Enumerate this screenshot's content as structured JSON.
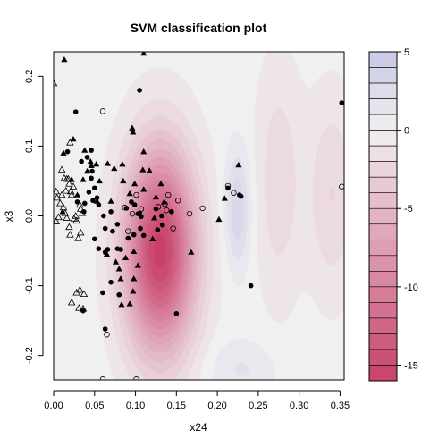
{
  "chart_data": {
    "type": "scatter",
    "title": "SVM classification plot",
    "xlabel": "x24",
    "ylabel": "x3",
    "xlim": [
      0.0,
      0.355
    ],
    "ylim": [
      -0.235,
      0.235
    ],
    "x_ticks": [
      "0.00",
      "0.05",
      "0.10",
      "0.15",
      "0.20",
      "0.25",
      "0.30",
      "0.35"
    ],
    "x_tick_values": [
      0.0,
      0.05,
      0.1,
      0.15,
      0.2,
      0.25,
      0.3,
      0.35
    ],
    "y_ticks": [
      "-0.2",
      "-0.1",
      "0.0",
      "0.1",
      "0.2"
    ],
    "y_tick_values": [
      -0.2,
      -0.1,
      0.0,
      0.1,
      0.2
    ],
    "colorbar": {
      "ticks": [
        "5",
        "0",
        "-5",
        "-10",
        "-15"
      ],
      "tick_values": [
        5,
        0,
        -5,
        -10,
        -15
      ],
      "range": [
        -16,
        5
      ],
      "colors": {
        "positive": "#c8c8e6",
        "zero": "#f0f0f0",
        "negative": "#c8406a"
      }
    },
    "decision_surface": {
      "components": [
        {
          "x": 0.13,
          "y": -0.05,
          "sx": 0.03,
          "sy": 0.1,
          "amp": -16.0
        },
        {
          "x": 0.225,
          "y": 0.01,
          "sx": 0.011,
          "sy": 0.06,
          "amp": 3.5
        },
        {
          "x": 0.275,
          "y": 0.05,
          "sx": 0.02,
          "sy": 0.12,
          "amp": -2.2
        },
        {
          "x": 0.34,
          "y": 0.03,
          "sx": 0.02,
          "sy": 0.1,
          "amp": -2.5
        },
        {
          "x": 0.23,
          "y": -0.22,
          "sx": 0.03,
          "sy": 0.03,
          "amp": 1.6
        }
      ]
    },
    "series": [
      {
        "marker": "filled-circle",
        "points": [
          [
            0.027,
            0.149
          ],
          [
            0.105,
            0.18
          ],
          [
            0.352,
            0.162
          ],
          [
            0.017,
            0.092
          ],
          [
            0.041,
            0.084
          ],
          [
            0.046,
            0.094
          ],
          [
            0.034,
            0.078
          ],
          [
            0.047,
            0.064
          ],
          [
            0.046,
            0.054
          ],
          [
            0.05,
            0.04
          ],
          [
            0.043,
            0.034
          ],
          [
            0.048,
            0.022
          ],
          [
            0.053,
            0.026
          ],
          [
            0.029,
            0.02
          ],
          [
            0.038,
            0.018
          ],
          [
            0.037,
            0.006
          ],
          [
            0.055,
            0.016
          ],
          [
            0.061,
            0.0
          ],
          [
            0.07,
            0.006
          ],
          [
            0.089,
            0.011
          ],
          [
            0.095,
            0.02
          ],
          [
            0.099,
            0.016
          ],
          [
            0.103,
            0.003
          ],
          [
            0.105,
            0.004
          ],
          [
            0.078,
            -0.012
          ],
          [
            0.072,
            -0.022
          ],
          [
            0.063,
            -0.018
          ],
          [
            0.05,
            -0.033
          ],
          [
            0.055,
            -0.047
          ],
          [
            0.063,
            -0.052
          ],
          [
            0.066,
            -0.048
          ],
          [
            0.078,
            -0.047
          ],
          [
            0.082,
            -0.048
          ],
          [
            0.091,
            -0.032
          ],
          [
            0.098,
            -0.027
          ],
          [
            0.11,
            -0.028
          ],
          [
            0.106,
            -0.018
          ],
          [
            0.127,
            -0.02
          ],
          [
            0.133,
            -0.013
          ],
          [
            0.125,
            0.01
          ],
          [
            0.132,
            0.0
          ],
          [
            0.144,
            0.006
          ],
          [
            0.07,
            -0.095
          ],
          [
            0.08,
            -0.113
          ],
          [
            0.06,
            -0.11
          ],
          [
            0.036,
            -0.136
          ],
          [
            0.063,
            -0.162
          ],
          [
            0.15,
            -0.14
          ],
          [
            0.213,
            0.04
          ],
          [
            0.227,
            0.03
          ],
          [
            0.241,
            -0.1
          ],
          [
            0.229,
            0.028
          ],
          [
            0.107,
            -0.001
          ]
        ]
      },
      {
        "marker": "open-circle",
        "points": [
          [
            0.06,
            0.15
          ],
          [
            0.087,
            0.012
          ],
          [
            0.091,
            -0.022
          ],
          [
            0.096,
            0.003
          ],
          [
            0.101,
            0.03
          ],
          [
            0.107,
            0.01
          ],
          [
            0.128,
            0.013
          ],
          [
            0.136,
            0.017
          ],
          [
            0.138,
            0.008
          ],
          [
            0.14,
            0.03
          ],
          [
            0.152,
            0.022
          ],
          [
            0.146,
            -0.018
          ],
          [
            0.166,
            0.003
          ],
          [
            0.182,
            0.011
          ],
          [
            0.213,
            0.043
          ],
          [
            0.22,
            0.033
          ],
          [
            0.352,
            0.042
          ],
          [
            0.065,
            -0.17
          ],
          [
            0.06,
            -0.234
          ],
          [
            0.101,
            -0.234
          ]
        ]
      },
      {
        "marker": "filled-triangle",
        "points": [
          [
            0.013,
            0.224
          ],
          [
            0.11,
            0.233
          ],
          [
            0.012,
            0.09
          ],
          [
            0.024,
            0.11
          ],
          [
            0.029,
            0.03
          ],
          [
            0.036,
            0.052
          ],
          [
            0.041,
            0.064
          ],
          [
            0.046,
            0.072
          ],
          [
            0.052,
            0.074
          ],
          [
            0.056,
            0.05
          ],
          [
            0.053,
            0.021
          ],
          [
            0.066,
            0.075
          ],
          [
            0.074,
            0.068
          ],
          [
            0.084,
            0.074
          ],
          [
            0.085,
            0.05
          ],
          [
            0.093,
            0.032
          ],
          [
            0.099,
            0.046
          ],
          [
            0.109,
            0.066
          ],
          [
            0.11,
            0.092
          ],
          [
            0.117,
            0.065
          ],
          [
            0.096,
            0.126
          ],
          [
            0.097,
            0.12
          ],
          [
            0.11,
            0.038
          ],
          [
            0.125,
            0.027
          ],
          [
            0.131,
            0.046
          ],
          [
            0.135,
            0.02
          ],
          [
            0.123,
            -0.003
          ],
          [
            0.121,
            -0.033
          ],
          [
            0.098,
            -0.051
          ],
          [
            0.103,
            -0.071
          ],
          [
            0.098,
            -0.09
          ],
          [
            0.082,
            -0.09
          ],
          [
            0.097,
            -0.108
          ],
          [
            0.093,
            -0.126
          ],
          [
            0.083,
            -0.127
          ],
          [
            0.168,
            -0.052
          ],
          [
            0.202,
            -0.005
          ],
          [
            0.209,
            0.025
          ],
          [
            0.226,
            0.073
          ],
          [
            0.065,
            -0.055
          ],
          [
            0.076,
            -0.066
          ],
          [
            0.08,
            -0.076
          ],
          [
            0.088,
            -0.06
          ],
          [
            0.07,
            0.021
          ],
          [
            0.011,
            0.006
          ],
          [
            0.022,
            0.052
          ],
          [
            0.045,
            0.078
          ],
          [
            0.038,
            0.094
          ]
        ]
      },
      {
        "marker": "open-triangle",
        "points": [
          [
            0.0,
            0.19
          ],
          [
            0.02,
            0.105
          ],
          [
            0.01,
            0.066
          ],
          [
            0.013,
            0.054
          ],
          [
            0.015,
            0.036
          ],
          [
            0.016,
            0.053
          ],
          [
            0.018,
            0.053
          ],
          [
            0.019,
            0.046
          ],
          [
            0.021,
            0.035
          ],
          [
            0.022,
            0.03
          ],
          [
            0.024,
            0.042
          ],
          [
            0.01,
            0.03
          ],
          [
            0.004,
            0.026
          ],
          [
            0.008,
            0.018
          ],
          [
            0.012,
            0.012
          ],
          [
            0.014,
            0.004
          ],
          [
            0.006,
            -0.002
          ],
          [
            0.003,
            -0.008
          ],
          [
            0.016,
            -0.003
          ],
          [
            0.019,
            -0.016
          ],
          [
            0.025,
            -0.004
          ],
          [
            0.027,
            0.0
          ],
          [
            0.032,
            0.016
          ],
          [
            0.033,
            0.01
          ],
          [
            0.035,
            0.004
          ],
          [
            0.028,
            -0.007
          ],
          [
            0.03,
            -0.032
          ],
          [
            0.033,
            -0.024
          ],
          [
            0.02,
            -0.027
          ],
          [
            0.036,
            -0.133
          ],
          [
            0.022,
            -0.124
          ],
          [
            0.031,
            -0.132
          ],
          [
            0.032,
            -0.106
          ],
          [
            0.028,
            -0.11
          ],
          [
            0.037,
            -0.112
          ],
          [
            0.003,
            0.035
          ]
        ]
      }
    ]
  }
}
